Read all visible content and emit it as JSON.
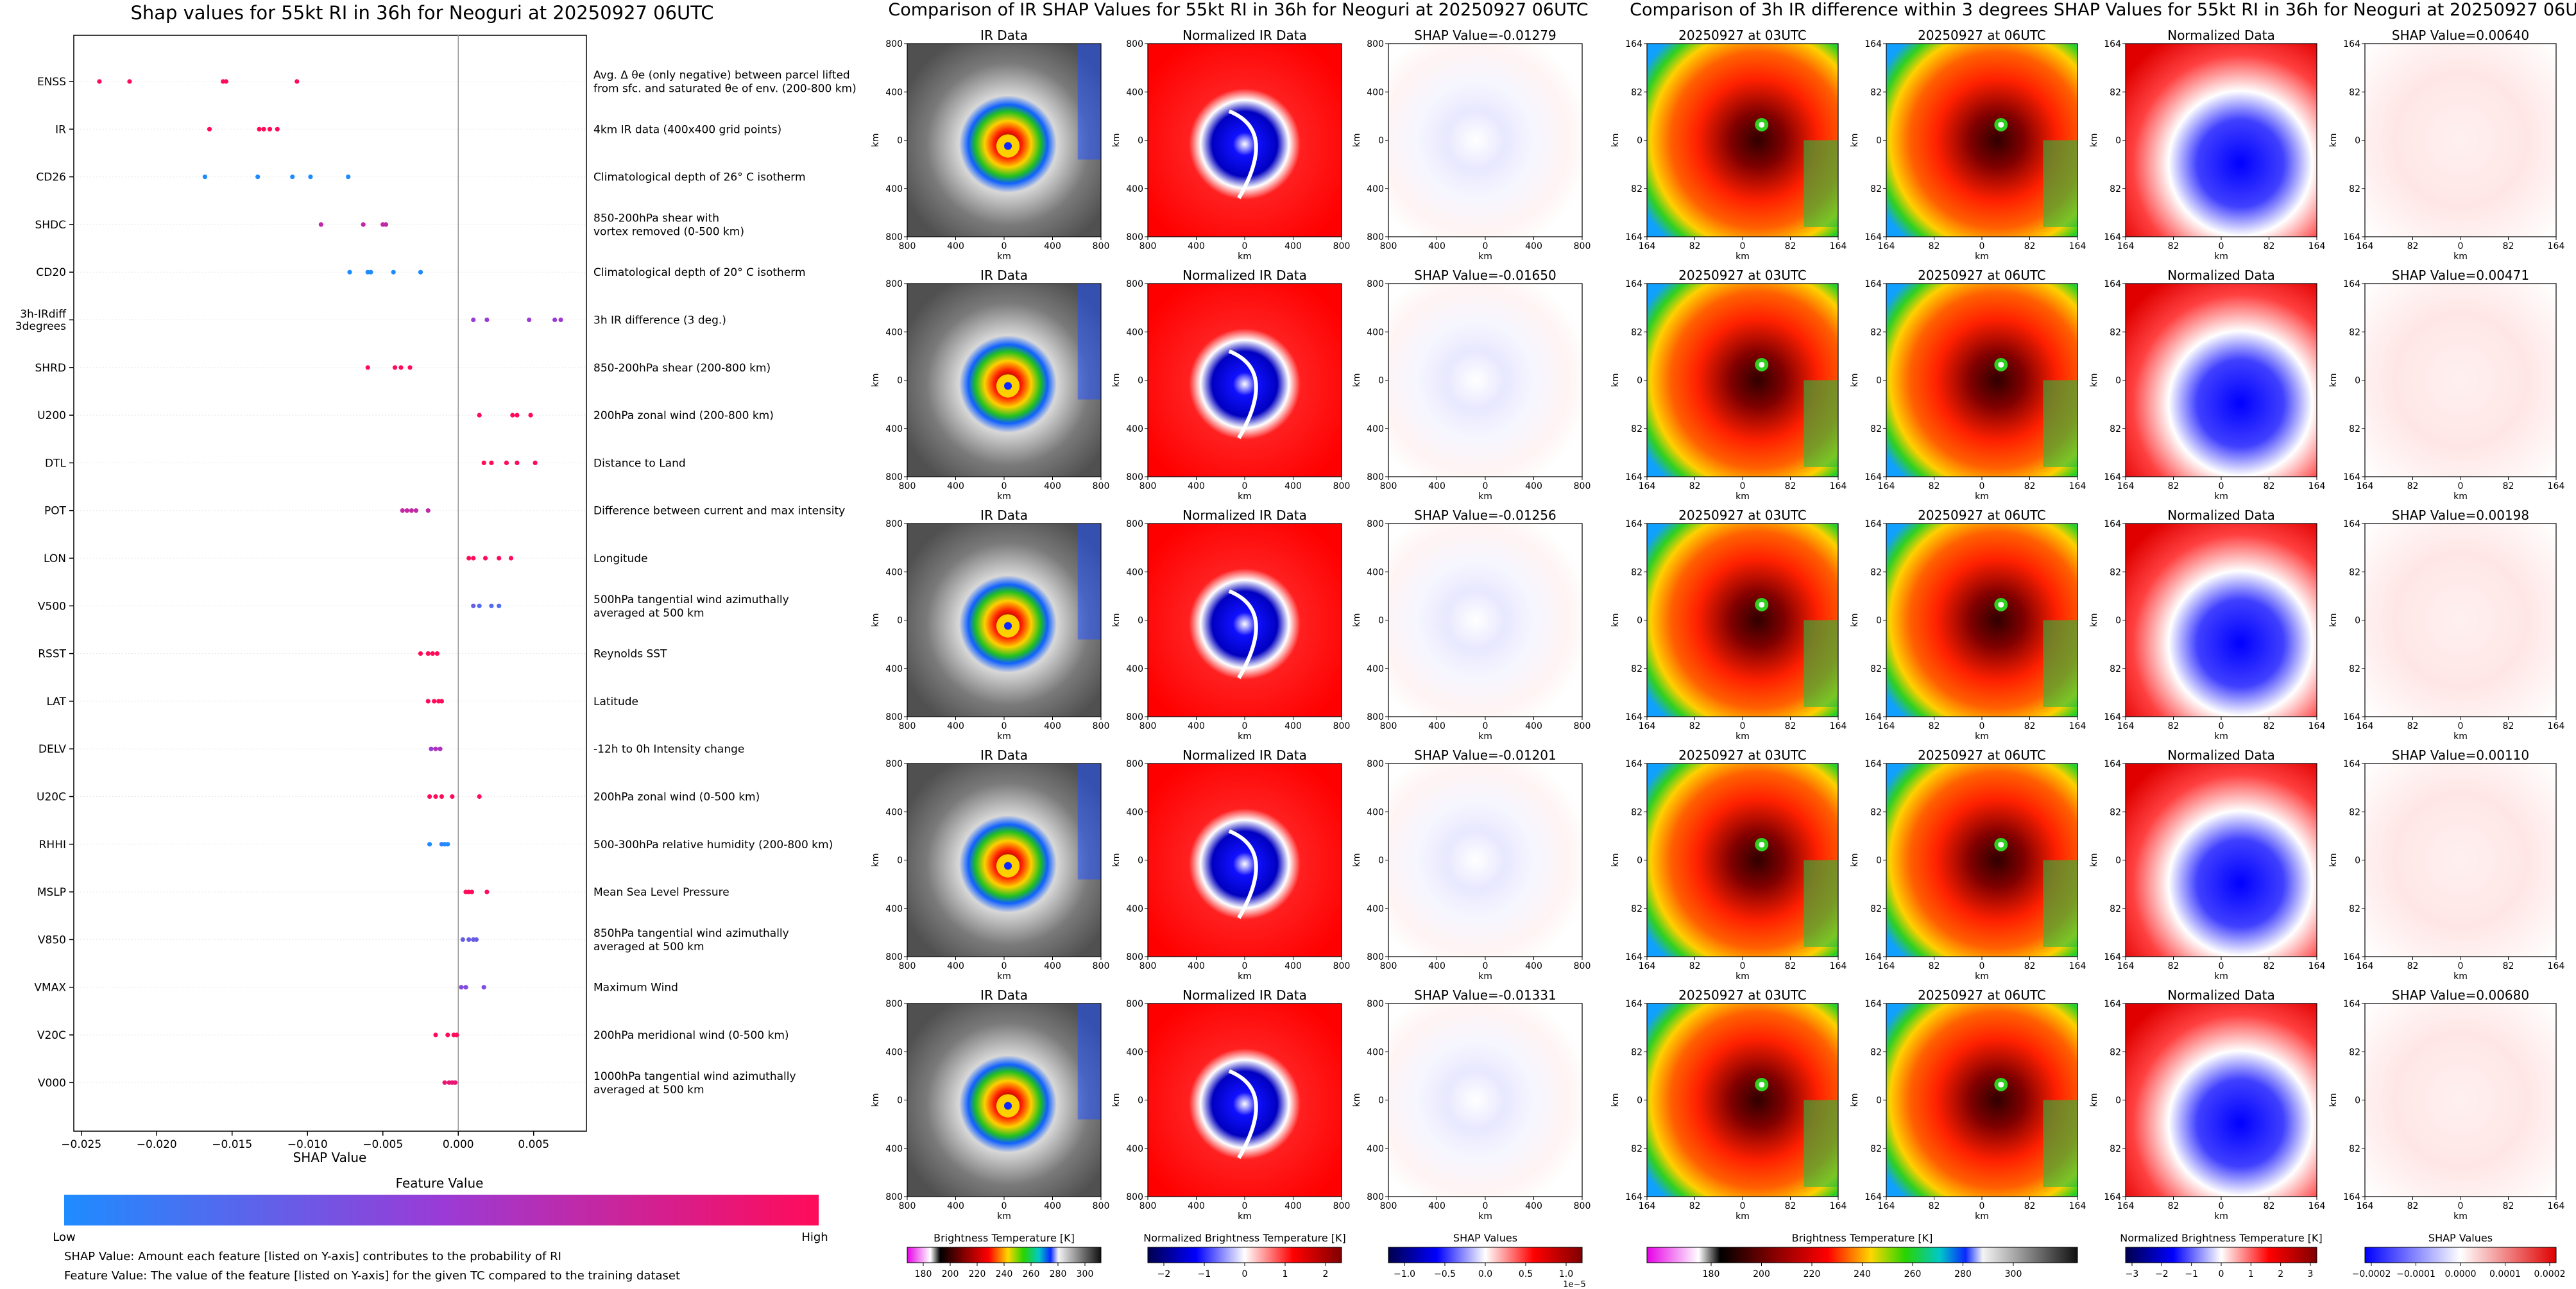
{
  "left_panel": {
    "title": "Shap values for 55kt RI in 36h for Neoguri at 20250927 06UTC",
    "colorbar_title": "Feature Value",
    "colorbar_low": "Low",
    "colorbar_high": "High",
    "footnote_1": "SHAP Value: Amount each feature [listed on Y-axis] contributes to the probability of RI",
    "footnote_2": "Feature Value: The value of the feature [listed on Y-axis] for the given TC compared to the training dataset",
    "colors": {
      "low": "#1e8cff",
      "mid": "#9a3bd6",
      "high": "#ff0b5a"
    }
  },
  "middle_panel": {
    "title": "Comparison of IR SHAP Values for 55kt RI in 36h for Neoguri at 20250927 06UTC",
    "column_titles": [
      "IR Data",
      "Normalized IR Data"
    ],
    "shap_titles": [
      "SHAP Value=-0.01279",
      "SHAP Value=-0.01650",
      "SHAP Value=-0.01256",
      "SHAP Value=-0.01201",
      "SHAP Value=-0.01331"
    ],
    "tick_labels": [
      "800",
      "400",
      "0",
      "400",
      "800"
    ],
    "axis_unit": "km",
    "colorbars": [
      {
        "title": "Brightness Temperature [K]",
        "ticks": [
          "180",
          "200",
          "220",
          "240",
          "260",
          "280",
          "300"
        ]
      },
      {
        "title": "Normalized Brightness Temperature [K]",
        "ticks": [
          "−2",
          "−1",
          "0",
          "1",
          "2"
        ]
      },
      {
        "title": "SHAP Values",
        "ticks": [
          "−1.0",
          "−0.5",
          "0.0",
          "0.5",
          "1.0"
        ],
        "exponent": "1e−5"
      }
    ]
  },
  "right_panel": {
    "title": "Comparison of 3h IR difference within 3 degrees SHAP Values for 55kt RI in 36h for Neoguri at 20250927 06UTC",
    "column_titles": [
      "20250927 at 03UTC",
      "20250927 at 06UTC",
      "Normalized Data"
    ],
    "shap_titles": [
      "SHAP Value=0.00640",
      "SHAP Value=0.00471",
      "SHAP Value=0.00198",
      "SHAP Value=0.00110",
      "SHAP Value=0.00680"
    ],
    "tick_labels": [
      "164",
      "82",
      "0",
      "82",
      "164"
    ],
    "axis_unit": "km",
    "colorbars": [
      {
        "title": "Brightness Temperature [K]",
        "ticks": [
          "180",
          "200",
          "220",
          "240",
          "260",
          "280",
          "300"
        ]
      },
      {
        "title": "Normalized Brightness Temperature [K]",
        "ticks": [
          "−3",
          "−2",
          "−1",
          "0",
          "1",
          "2",
          "3"
        ]
      },
      {
        "title": "SHAP Values",
        "ticks": [
          "−0.0002",
          "−0.0001",
          "0.0000",
          "0.0001",
          "0.0002"
        ]
      }
    ]
  },
  "chart_data": {
    "type": "scatter",
    "xlabel": "SHAP Value",
    "xlim": [
      -0.0255,
      0.0085
    ],
    "xticks": [
      "−0.025",
      "−0.020",
      "−0.015",
      "−0.010",
      "−0.005",
      "0.000",
      "0.005"
    ],
    "features": [
      {
        "name": "ENSS",
        "description": "Avg. Δ θe (only negative) between parcel lifted\nfrom sfc. and saturated θe of env. (200-800 km)",
        "points": [
          [
            -0.0238,
            1
          ],
          [
            -0.0218,
            1
          ],
          [
            -0.0156,
            1
          ],
          [
            -0.0154,
            1
          ],
          [
            -0.0107,
            1
          ]
        ]
      },
      {
        "name": "IR",
        "description": "4km IR data (400x400 grid points)",
        "points": [
          [
            -0.0165,
            1
          ],
          [
            -0.0132,
            1
          ],
          [
            -0.0129,
            1
          ],
          [
            -0.0125,
            1
          ],
          [
            -0.012,
            1
          ]
        ]
      },
      {
        "name": "CD26",
        "description": "Climatological depth of 26° C isotherm",
        "points": [
          [
            -0.0168,
            0
          ],
          [
            -0.0133,
            0
          ],
          [
            -0.011,
            0
          ],
          [
            -0.0098,
            0
          ],
          [
            -0.0073,
            0
          ]
        ]
      },
      {
        "name": "SHDC",
        "description": "850-200hPa shear with\nvortex removed (0-500 km)",
        "points": [
          [
            -0.0091,
            0.7
          ],
          [
            -0.0063,
            0.7
          ],
          [
            -0.005,
            0.7
          ],
          [
            -0.0048,
            0.7
          ]
        ]
      },
      {
        "name": "CD20",
        "description": "Climatological depth of 20° C isotherm",
        "points": [
          [
            -0.0072,
            0
          ],
          [
            -0.006,
            0
          ],
          [
            -0.0058,
            0
          ],
          [
            -0.0043,
            0
          ],
          [
            -0.0025,
            0
          ]
        ]
      },
      {
        "name": "3h-IRdiff\n3degrees",
        "description": "3h IR difference (3 deg.)",
        "points": [
          [
            0.001,
            0.5
          ],
          [
            0.0019,
            0.5
          ],
          [
            0.0047,
            0.5
          ],
          [
            0.0064,
            0.5
          ],
          [
            0.0068,
            0.5
          ]
        ]
      },
      {
        "name": "SHRD",
        "description": "850-200hPa shear (200-800 km)",
        "points": [
          [
            -0.006,
            1
          ],
          [
            -0.0042,
            1
          ],
          [
            -0.0038,
            1
          ],
          [
            -0.0032,
            1
          ]
        ]
      },
      {
        "name": "U200",
        "description": "200hPa zonal wind (200-800 km)",
        "points": [
          [
            0.0014,
            1
          ],
          [
            0.0036,
            1
          ],
          [
            0.0039,
            1
          ],
          [
            0.0048,
            1
          ]
        ]
      },
      {
        "name": "DTL",
        "description": "Distance to Land",
        "points": [
          [
            0.0017,
            1
          ],
          [
            0.0022,
            1
          ],
          [
            0.0032,
            1
          ],
          [
            0.0039,
            1
          ],
          [
            0.0051,
            1
          ]
        ]
      },
      {
        "name": "POT",
        "description": "Difference between current and max intensity",
        "points": [
          [
            -0.0037,
            0.7
          ],
          [
            -0.0034,
            0.7
          ],
          [
            -0.0031,
            0.7
          ],
          [
            -0.0028,
            0.7
          ],
          [
            -0.002,
            0.7
          ]
        ]
      },
      {
        "name": "LON",
        "description": "Longitude",
        "points": [
          [
            0.0007,
            1
          ],
          [
            0.001,
            1
          ],
          [
            0.0018,
            1
          ],
          [
            0.0027,
            1
          ],
          [
            0.0035,
            1
          ]
        ]
      },
      {
        "name": "V500",
        "description": "500hPa tangential wind azimuthally\naveraged at 500 km",
        "points": [
          [
            0.001,
            0.3
          ],
          [
            0.0014,
            0.2
          ],
          [
            0.0022,
            0.2
          ],
          [
            0.0027,
            0.2
          ]
        ]
      },
      {
        "name": "RSST",
        "description": "Reynolds SST",
        "points": [
          [
            -0.0025,
            1
          ],
          [
            -0.002,
            1
          ],
          [
            -0.0017,
            1
          ],
          [
            -0.0014,
            1
          ]
        ]
      },
      {
        "name": "LAT",
        "description": "Latitude",
        "points": [
          [
            -0.002,
            1
          ],
          [
            -0.0016,
            1
          ],
          [
            -0.0013,
            1
          ],
          [
            -0.0011,
            1
          ]
        ]
      },
      {
        "name": "DELV",
        "description": "-12h to 0h Intensity change",
        "points": [
          [
            -0.0018,
            0.5
          ],
          [
            -0.0015,
            0.6
          ],
          [
            -0.0012,
            0.6
          ]
        ]
      },
      {
        "name": "U20C",
        "description": "200hPa zonal wind (0-500 km)",
        "points": [
          [
            -0.0019,
            1
          ],
          [
            -0.0015,
            1
          ],
          [
            -0.0011,
            1
          ],
          [
            -0.0004,
            1
          ],
          [
            0.0014,
            1
          ]
        ]
      },
      {
        "name": "RHHI",
        "description": "500-300hPa relative humidity (200-800 km)",
        "points": [
          [
            -0.0019,
            0
          ],
          [
            -0.0011,
            0.1
          ],
          [
            -0.0009,
            0
          ],
          [
            -0.0007,
            0
          ]
        ]
      },
      {
        "name": "MSLP",
        "description": "Mean Sea Level Pressure",
        "points": [
          [
            0.0005,
            1
          ],
          [
            0.0007,
            1
          ],
          [
            0.0009,
            1
          ],
          [
            0.0019,
            1
          ]
        ]
      },
      {
        "name": "V850",
        "description": "850hPa tangential wind azimuthally\naveraged at 500 km",
        "points": [
          [
            0.0003,
            0.3
          ],
          [
            0.0007,
            0.3
          ],
          [
            0.001,
            0.3
          ],
          [
            0.0012,
            0.3
          ]
        ]
      },
      {
        "name": "VMAX",
        "description": "Maximum Wind",
        "points": [
          [
            0.0002,
            0.4
          ],
          [
            0.0005,
            0.4
          ],
          [
            0.0017,
            0.4
          ]
        ]
      },
      {
        "name": "V20C",
        "description": "200hPa meridional wind (0-500 km)",
        "points": [
          [
            -0.0015,
            1
          ],
          [
            -0.0007,
            1
          ],
          [
            -0.0003,
            1
          ],
          [
            -0.0001,
            1
          ]
        ]
      },
      {
        "name": "V000",
        "description": "1000hPa tangential wind azimuthally\naveraged at 500 km",
        "points": [
          [
            -0.0009,
            0.9
          ],
          [
            -0.0006,
            0.9
          ],
          [
            -0.0004,
            0.9
          ],
          [
            -0.0002,
            0.9
          ]
        ]
      }
    ]
  }
}
